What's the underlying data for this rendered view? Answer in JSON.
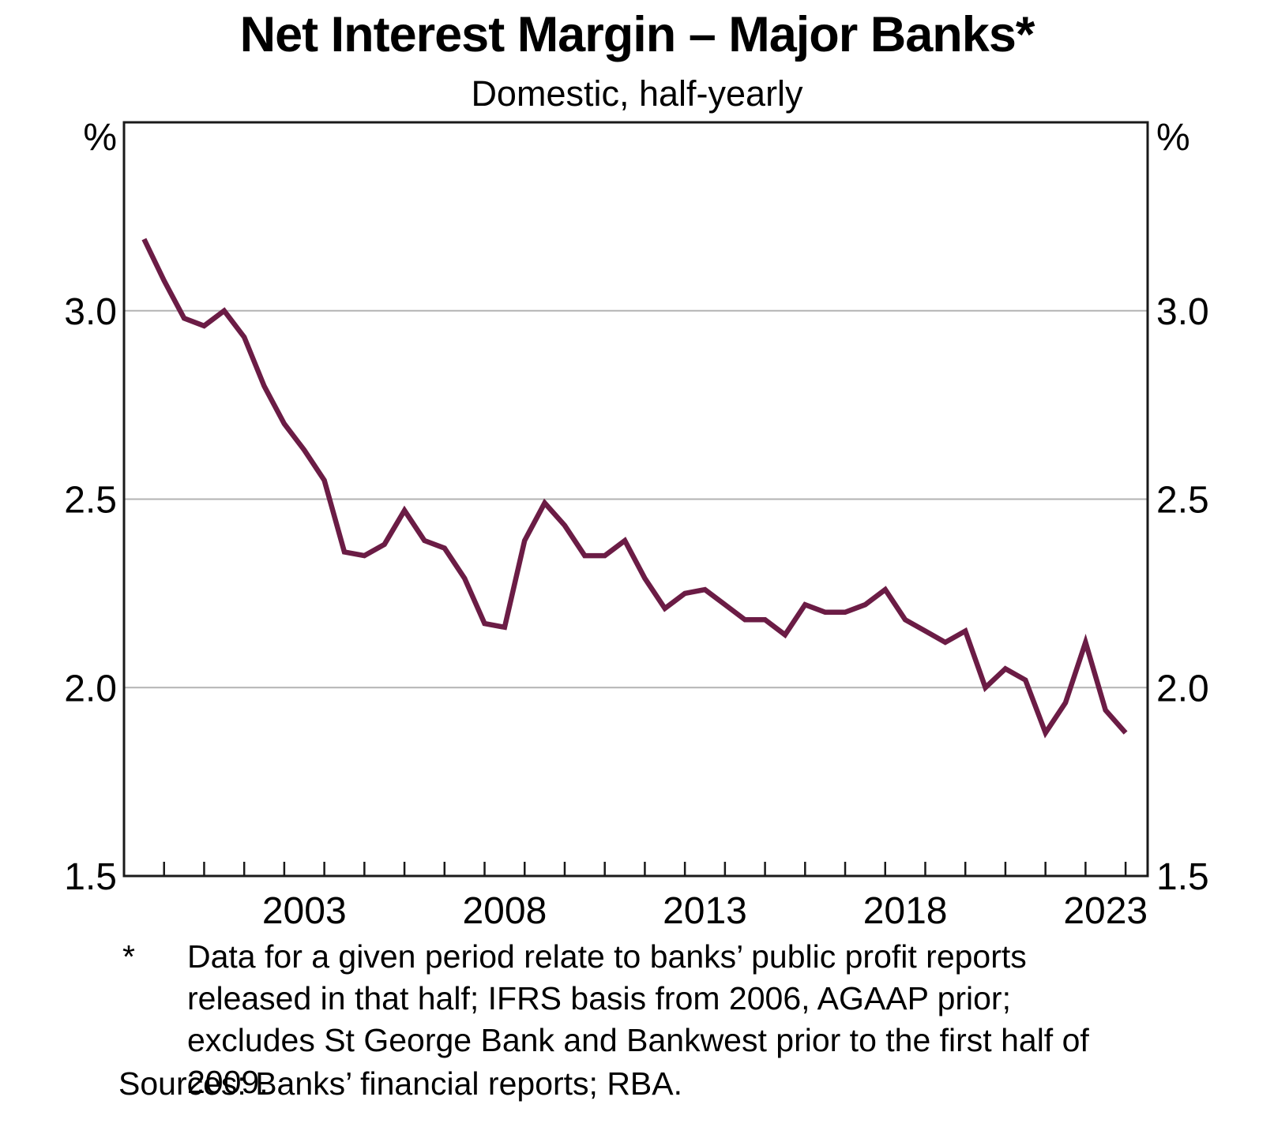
{
  "header": {
    "title": "Net Interest Margin – Major Banks*",
    "subtitle": "Domestic, half-yearly"
  },
  "chart_data": {
    "type": "line",
    "title": "Net Interest Margin – Major Banks*",
    "subtitle": "Domestic, half-yearly",
    "unit": "%",
    "frequency": "half-yearly",
    "grid": true,
    "legend": "none",
    "line_color": "#6b1c45",
    "series": [
      {
        "name": "Major banks net interest margin (domestic)",
        "periods": [
          "1999H1",
          "1999H2",
          "2000H1",
          "2000H2",
          "2001H1",
          "2001H2",
          "2002H1",
          "2002H2",
          "2003H1",
          "2003H2",
          "2004H1",
          "2004H2",
          "2005H1",
          "2005H2",
          "2006H1",
          "2006H2",
          "2007H1",
          "2007H2",
          "2008H1",
          "2008H2",
          "2009H1",
          "2009H2",
          "2010H1",
          "2010H2",
          "2011H1",
          "2011H2",
          "2012H1",
          "2012H2",
          "2013H1",
          "2013H2",
          "2014H1",
          "2014H2",
          "2015H1",
          "2015H2",
          "2016H1",
          "2016H2",
          "2017H1",
          "2017H2",
          "2018H1",
          "2018H2",
          "2019H1",
          "2019H2",
          "2020H1",
          "2020H2",
          "2021H1",
          "2021H2",
          "2022H1",
          "2022H2",
          "2023H1",
          "2023H2"
        ],
        "values": [
          3.19,
          3.08,
          2.98,
          2.96,
          3.0,
          2.93,
          2.8,
          2.7,
          2.63,
          2.55,
          2.36,
          2.35,
          2.38,
          2.47,
          2.39,
          2.37,
          2.29,
          2.17,
          2.16,
          2.39,
          2.49,
          2.43,
          2.35,
          2.35,
          2.39,
          2.29,
          2.21,
          2.25,
          2.26,
          2.22,
          2.18,
          2.18,
          2.14,
          2.22,
          2.2,
          2.2,
          2.22,
          2.26,
          2.18,
          2.15,
          2.12,
          2.15,
          2.0,
          2.05,
          2.02,
          1.88,
          1.96,
          2.12,
          1.94,
          1.88
        ]
      }
    ],
    "ylim": [
      1.5,
      3.5
    ],
    "yticks": [
      {
        "value": 3.0,
        "label": "3.0",
        "grid": true
      },
      {
        "value": 2.5,
        "label": "2.5",
        "grid": true
      },
      {
        "value": 2.0,
        "label": "2.0",
        "grid": true
      },
      {
        "value": 1.5,
        "label": "1.5",
        "grid": false
      }
    ],
    "y_unit_label": "%",
    "xlim_years": [
      1999.0,
      2024.55
    ],
    "x_minor_tick_years": [
      2000,
      2001,
      2002,
      2003,
      2004,
      2005,
      2006,
      2007,
      2008,
      2009,
      2010,
      2011,
      2012,
      2013,
      2014,
      2015,
      2016,
      2017,
      2018,
      2019,
      2020,
      2021,
      2022,
      2023,
      2024
    ],
    "x_year_labels": [
      "2003",
      "2008",
      "2013",
      "2018",
      "2023"
    ],
    "axis_color": "#1a1a1a",
    "gridline_color": "#b3b3b3"
  },
  "footnote": {
    "marker": "*",
    "text": "Data for a given period relate to banks’ public profit reports released in that half; IFRS basis from 2006, AGAAP prior; excludes St George Bank and Bankwest prior to the first half of 2009."
  },
  "sources": {
    "text": "Sources: Banks’ financial reports; RBA."
  }
}
